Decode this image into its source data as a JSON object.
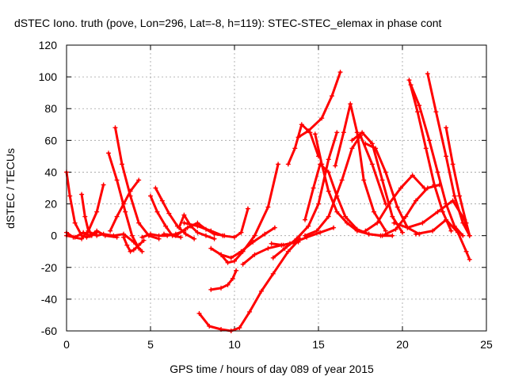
{
  "chart_data": {
    "type": "line",
    "title": "dSTEC Iono. truth (pove, Lon=296, Lat=-8, h=119): STEC-STEC_elemax in phase cont",
    "xlabel": "GPS time / hours of day 089 of year 2015",
    "ylabel": "dSTEC  / TECUs",
    "xlim": [
      0,
      25
    ],
    "ylim": [
      -60,
      120
    ],
    "xticks": [
      0,
      5,
      10,
      15,
      20,
      25
    ],
    "yticks": [
      -60,
      -40,
      -20,
      0,
      20,
      40,
      60,
      80,
      100,
      120
    ],
    "grid": true,
    "color": "#ff0000",
    "marker": "plus",
    "series": [
      {
        "x": [
          0.0,
          0.2,
          0.5,
          0.9,
          1.2,
          1.5
        ],
        "y": [
          40,
          25,
          8,
          0,
          -1,
          0
        ]
      },
      {
        "x": [
          0.0,
          0.4,
          0.9,
          1.3,
          1.8,
          2.2
        ],
        "y": [
          2,
          -1,
          -2,
          3,
          15,
          32
        ]
      },
      {
        "x": [
          0.0,
          0.5,
          1.0,
          1.4,
          1.8,
          2.3,
          3.0
        ],
        "y": [
          0,
          -1,
          2,
          0,
          3,
          0,
          -1
        ]
      },
      {
        "x": [
          0.9,
          1.1,
          1.3,
          1.5,
          1.8
        ],
        "y": [
          26,
          12,
          3,
          1,
          2
        ]
      },
      {
        "x": [
          1.4,
          1.8,
          2.2,
          2.8,
          3.4,
          4.0,
          4.5
        ],
        "y": [
          2,
          0,
          1,
          0,
          1,
          -4,
          -10
        ]
      },
      {
        "x": [
          2.5,
          3.0,
          3.5,
          3.9,
          4.3
        ],
        "y": [
          52,
          35,
          15,
          0,
          -8
        ]
      },
      {
        "x": [
          2.9,
          3.3,
          3.8,
          4.3,
          4.9,
          5.5
        ],
        "y": [
          68,
          45,
          25,
          8,
          0,
          -2
        ]
      },
      {
        "x": [
          3.4,
          3.6,
          3.8,
          4.0,
          4.3,
          4.6
        ],
        "y": [
          -1,
          -6,
          -10,
          -9,
          -6,
          -3
        ]
      },
      {
        "x": [
          2.6,
          3.0,
          3.4,
          3.8,
          4.3
        ],
        "y": [
          3,
          12,
          20,
          28,
          35
        ]
      },
      {
        "x": [
          4.5,
          5.0,
          5.5,
          6.0,
          6.5,
          7.0
        ],
        "y": [
          -1,
          1,
          0,
          0,
          1,
          3
        ]
      },
      {
        "x": [
          5.0,
          5.4,
          5.9,
          6.3,
          6.8
        ],
        "y": [
          25,
          15,
          6,
          0,
          -1
        ]
      },
      {
        "x": [
          5.3,
          5.7,
          6.1,
          6.6,
          7.1,
          7.6
        ],
        "y": [
          30,
          22,
          14,
          6,
          1,
          -2
        ]
      },
      {
        "x": [
          5.8,
          6.5,
          7.2,
          7.8,
          8.3,
          8.8,
          9.4
        ],
        "y": [
          1,
          0,
          5,
          8,
          4,
          1,
          0
        ]
      },
      {
        "x": [
          6.7,
          7.0,
          7.4,
          7.8,
          8.3,
          8.8
        ],
        "y": [
          5,
          13,
          6,
          2,
          0,
          -2
        ]
      },
      {
        "x": [
          7.0,
          7.8,
          8.6,
          9.3,
          10.0,
          10.4,
          10.8
        ],
        "y": [
          8,
          6,
          3,
          0,
          -1,
          2,
          17
        ]
      },
      {
        "x": [
          8.6,
          9.2,
          9.8,
          10.4,
          11.1,
          11.8,
          12.4
        ],
        "y": [
          -8,
          -12,
          -14,
          -10,
          -4,
          1,
          5
        ]
      },
      {
        "x": [
          9.2,
          9.6,
          10.0,
          10.5,
          11.2,
          12.0,
          12.6
        ],
        "y": [
          -12,
          -17,
          -16,
          -10,
          0,
          18,
          45
        ]
      },
      {
        "x": [
          8.6,
          9.2,
          9.6,
          9.9,
          10.1
        ],
        "y": [
          -34,
          -33,
          -31,
          -27,
          -22
        ]
      },
      {
        "x": [
          7.9,
          8.5,
          9.2,
          9.8,
          10.3,
          10.9,
          11.6,
          12.3,
          13.2,
          13.9
        ],
        "y": [
          -49,
          -57,
          -59,
          -60,
          -58,
          -48,
          -35,
          -24,
          -10,
          -2
        ]
      },
      {
        "x": [
          10.5,
          11.2,
          12.0,
          12.8,
          13.3,
          13.8
        ],
        "y": [
          -18,
          -12,
          -8,
          -6,
          -5,
          -4
        ]
      },
      {
        "x": [
          12.3,
          13.0,
          13.7,
          14.4,
          15.0,
          15.6,
          16.1
        ],
        "y": [
          -14,
          -8,
          -2,
          6,
          20,
          48,
          65
        ]
      },
      {
        "x": [
          12.2,
          12.9,
          13.6,
          14.3,
          15.1,
          15.9
        ],
        "y": [
          -5,
          -6,
          -4,
          -1,
          2,
          5
        ]
      },
      {
        "x": [
          13.2,
          13.6,
          14.0,
          14.5,
          15.0
        ],
        "y": [
          45,
          55,
          70,
          65,
          50
        ]
      },
      {
        "x": [
          13.8,
          14.4,
          15.2,
          15.8,
          16.3
        ],
        "y": [
          62,
          66,
          74,
          88,
          103
        ]
      },
      {
        "x": [
          14.2,
          14.7,
          15.1,
          15.6,
          16.1,
          16.6,
          17.3,
          18.0,
          18.7
        ],
        "y": [
          10,
          30,
          45,
          40,
          25,
          12,
          4,
          1,
          0
        ]
      },
      {
        "x": [
          14.8,
          15.2,
          15.6,
          16.1,
          16.7,
          17.3,
          18.0,
          18.8,
          19.4
        ],
        "y": [
          64,
          45,
          28,
          15,
          8,
          3,
          1,
          0,
          0
        ]
      },
      {
        "x": [
          14.2,
          14.9,
          15.6,
          16.4,
          17.0,
          17.5,
          18.2,
          19.0
        ],
        "y": [
          0,
          3,
          12,
          35,
          55,
          63,
          45,
          20
        ]
      },
      {
        "x": [
          16.0,
          16.5,
          16.9,
          17.3,
          17.7,
          18.3,
          19.0
        ],
        "y": [
          44,
          65,
          83,
          65,
          35,
          15,
          3
        ]
      },
      {
        "x": [
          17.0,
          17.6,
          18.2,
          18.8,
          19.4,
          20.0
        ],
        "y": [
          60,
          65,
          58,
          35,
          12,
          2
        ]
      },
      {
        "x": [
          17.8,
          18.4,
          19.0,
          19.7,
          20.3,
          21.0
        ],
        "y": [
          58,
          55,
          40,
          18,
          5,
          1
        ]
      },
      {
        "x": [
          17.8,
          18.5,
          19.2,
          19.9,
          20.6,
          21.3
        ],
        "y": [
          3,
          8,
          20,
          30,
          38,
          30
        ]
      },
      {
        "x": [
          19.0,
          19.6,
          20.2,
          20.8,
          21.5,
          22.2
        ],
        "y": [
          1,
          4,
          12,
          22,
          30,
          32
        ]
      },
      {
        "x": [
          20.4,
          20.9,
          21.4,
          21.9,
          22.4,
          22.9
        ],
        "y": [
          98,
          78,
          55,
          32,
          15,
          3
        ]
      },
      {
        "x": [
          20.5,
          21.0,
          21.6,
          22.1,
          22.6,
          23.1,
          23.6
        ],
        "y": [
          95,
          82,
          60,
          40,
          20,
          6,
          0
        ]
      },
      {
        "x": [
          21.5,
          22.0,
          22.6,
          23.1,
          23.6,
          24.0
        ],
        "y": [
          102,
          78,
          50,
          25,
          8,
          0
        ]
      },
      {
        "x": [
          22.6,
          23.0,
          23.4,
          23.8,
          24.0
        ],
        "y": [
          68,
          45,
          25,
          8,
          0
        ]
      },
      {
        "x": [
          19.5,
          20.3,
          21.2,
          22.1,
          23.0,
          23.7,
          24.0
        ],
        "y": [
          8,
          5,
          8,
          15,
          22,
          10,
          0
        ]
      },
      {
        "x": [
          20.8,
          21.8,
          22.6,
          23.3,
          23.8,
          24.0
        ],
        "y": [
          1,
          3,
          10,
          2,
          -10,
          -15
        ]
      }
    ]
  }
}
